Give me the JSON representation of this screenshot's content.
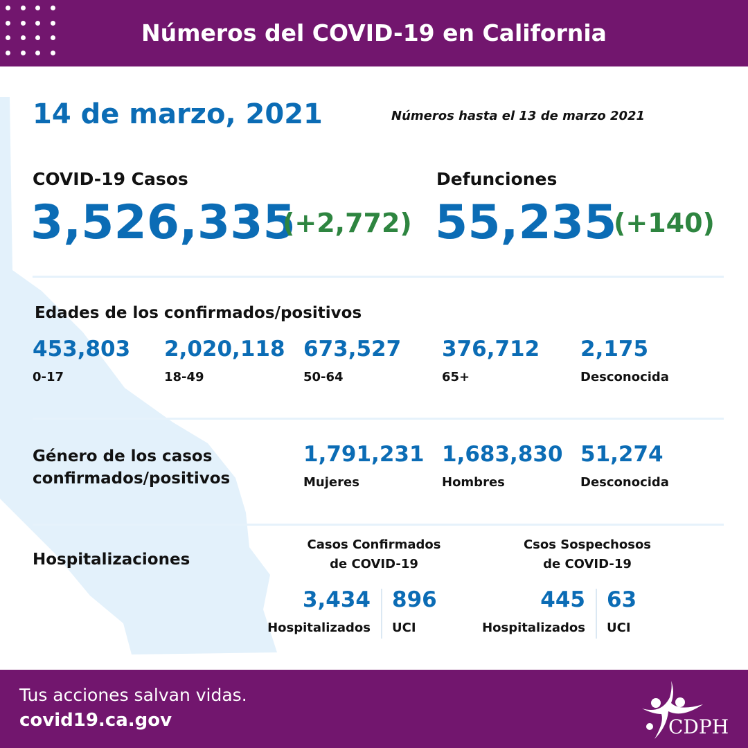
{
  "header": {
    "title": "Números del COVID-19 en California"
  },
  "date": "14 de marzo, 2021",
  "as_of": "Números hasta el 13 de marzo 2021",
  "cases": {
    "label": "COVID-19 Casos",
    "total": "3,526,335",
    "change": "(+2,772)"
  },
  "deaths": {
    "label": "Defunciones",
    "total": "55,235",
    "change": "(+140)"
  },
  "ages": {
    "title": "Edades de los confirmados/positivos",
    "items": [
      {
        "value": "453,803",
        "label": "0-17"
      },
      {
        "value": "2,020,118",
        "label": "18-49"
      },
      {
        "value": "673,527",
        "label": "50-64"
      },
      {
        "value": "376,712",
        "label": "65+"
      },
      {
        "value": "2,175",
        "label": "Desconocida"
      }
    ]
  },
  "gender": {
    "title_line1": "Género de los casos",
    "title_line2": "confirmados/positivos",
    "items": [
      {
        "value": "1,791,231",
        "label": "Mujeres"
      },
      {
        "value": "1,683,830",
        "label": "Hombres"
      },
      {
        "value": "51,274",
        "label": "Desconocida"
      }
    ]
  },
  "hosp": {
    "title": "Hospitalizaciones",
    "confirmed": {
      "line1": "Casos Confirmados",
      "line2": "de COVID-19",
      "hosp_value": "3,434",
      "hosp_label": "Hospitalizados",
      "icu_value": "896",
      "icu_label": "UCI"
    },
    "suspected": {
      "line1": "Csos Sospechosos",
      "line2": "de COVID-19",
      "hosp_value": "445",
      "hosp_label": "Hospitalizados",
      "icu_value": "63",
      "icu_label": "UCI"
    }
  },
  "footer": {
    "tagline": "Tus acciones salvan vidas.",
    "url": "covid19.ca.gov",
    "logo_text": "CDPH"
  },
  "colors": {
    "purple": "#72166e",
    "blue": "#0b6cb5",
    "green": "#2e8540",
    "map": "#e3f1fb"
  }
}
